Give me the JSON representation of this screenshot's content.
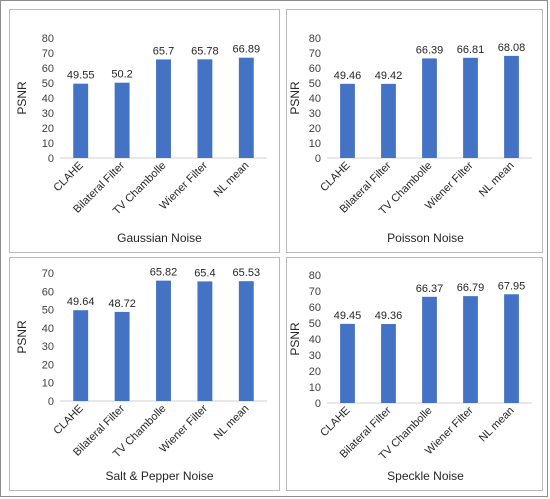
{
  "chart_data": [
    {
      "type": "bar",
      "categories": [
        "CLAHE",
        "Bilateral Filter",
        "TV Chambolle",
        "Wiener Filter",
        "NL mean"
      ],
      "values": [
        49.55,
        50.2,
        65.7,
        65.78,
        66.89
      ],
      "value_labels": [
        "49.55",
        "50.2",
        "65.7",
        "65.78",
        "66.89"
      ],
      "xlabel": "Gaussian Noise",
      "ylabel": "PSNR",
      "ylim": [
        0,
        80
      ],
      "yticks": [
        0,
        10,
        20,
        30,
        40,
        50,
        60,
        70,
        80
      ],
      "grid": false,
      "color": "#4472C4"
    },
    {
      "type": "bar",
      "categories": [
        "CLAHE",
        "Bilateral Filter",
        "TV Chambolle",
        "Wiener Filter",
        "NL mean"
      ],
      "values": [
        49.46,
        49.42,
        66.39,
        66.81,
        68.08
      ],
      "value_labels": [
        "49.46",
        "49.42",
        "66.39",
        "66.81",
        "68.08"
      ],
      "xlabel": "Poisson Noise",
      "ylabel": "PSNR",
      "ylim": [
        0,
        80
      ],
      "yticks": [
        0,
        10,
        20,
        30,
        40,
        50,
        60,
        70,
        80
      ],
      "grid": false,
      "color": "#4472C4"
    },
    {
      "type": "bar",
      "categories": [
        "CLAHE",
        "Bilateral Filter",
        "TV Chambolle",
        "Wiener Filter",
        "NL mean"
      ],
      "values": [
        49.64,
        48.72,
        65.82,
        65.4,
        65.53
      ],
      "value_labels": [
        "49.64",
        "48.72",
        "65.82",
        "65.4",
        "65.53"
      ],
      "xlabel": "Salt & Pepper Noise",
      "ylabel": "PSNR",
      "ylim": [
        0,
        70
      ],
      "yticks": [
        0,
        10,
        20,
        30,
        40,
        50,
        60,
        70
      ],
      "grid": false,
      "color": "#4472C4"
    },
    {
      "type": "bar",
      "categories": [
        "CLAHE",
        "Bilateral Filter",
        "TV Chambolle",
        "Wiener Filter",
        "NL mean"
      ],
      "values": [
        49.45,
        49.36,
        66.37,
        66.79,
        67.95
      ],
      "value_labels": [
        "49.45",
        "49.36",
        "66.37",
        "66.79",
        "67.95"
      ],
      "xlabel": "Speckle Noise",
      "ylabel": "PSNR",
      "ylim": [
        0,
        80
      ],
      "yticks": [
        0,
        10,
        20,
        30,
        40,
        50,
        60,
        70,
        80
      ],
      "grid": false,
      "color": "#4472C4"
    }
  ]
}
